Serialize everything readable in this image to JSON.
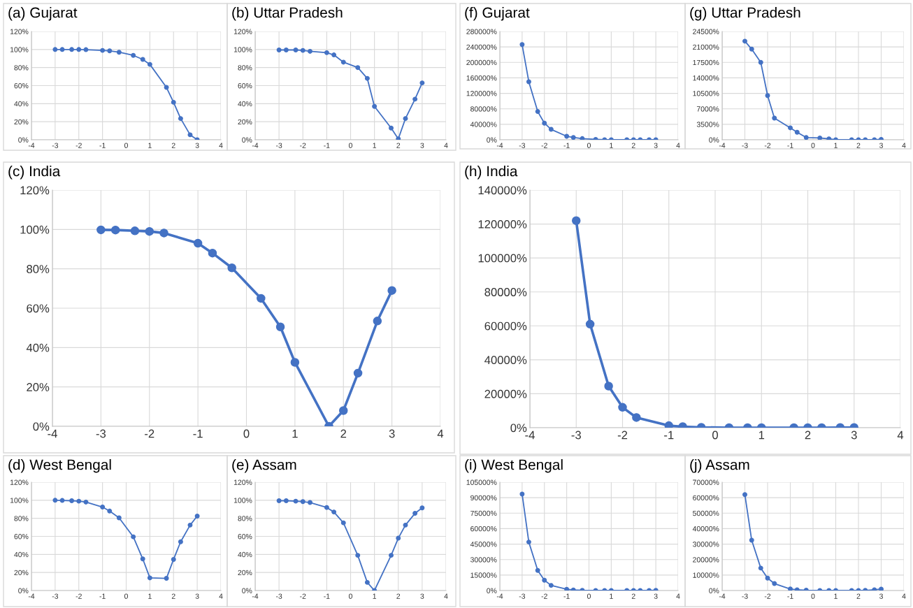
{
  "chart_data": [
    {
      "type": "line",
      "title": "(a) Gujarat",
      "x": [
        -3,
        -2.7,
        -2.3,
        -2,
        -1.7,
        -1,
        -0.7,
        -0.3,
        0.3,
        0.7,
        1,
        1.7,
        2,
        2.3,
        2.7,
        3
      ],
      "series": [
        {
          "color": "#4472c4",
          "values": [
            100,
            100,
            100,
            100,
            99.8,
            99,
            98.5,
            97,
            93.5,
            89,
            83.5,
            58,
            41.5,
            23.5,
            5.5,
            0
          ]
        }
      ],
      "xlim": [
        -4,
        4
      ],
      "ylim": [
        0,
        120
      ],
      "xticks": [
        -4,
        -3,
        -2,
        -1,
        0,
        1,
        2,
        3,
        4
      ],
      "yticks": [
        {
          "value": 0,
          "label": "0%"
        },
        {
          "value": 20,
          "label": "20%"
        },
        {
          "value": 40,
          "label": "40%"
        },
        {
          "value": 60,
          "label": "60%"
        },
        {
          "value": 80,
          "label": "80%"
        },
        {
          "value": 100,
          "label": "100%"
        },
        {
          "value": 120,
          "label": "120%"
        }
      ],
      "grid": true,
      "marker": "circle",
      "line_style": "solid"
    },
    {
      "type": "line",
      "title": "(b) Uttar Pradesh",
      "x": [
        -3,
        -2.7,
        -2.3,
        -2,
        -1.7,
        -1,
        -0.7,
        -0.3,
        0.3,
        0.7,
        1,
        1.7,
        2,
        2.3,
        2.7,
        3
      ],
      "series": [
        {
          "color": "#4472c4",
          "values": [
            99.5,
            99.5,
            99.5,
            99,
            98,
            96.5,
            94,
            86,
            80,
            68,
            37,
            13,
            1,
            23.5,
            45,
            63
          ]
        }
      ],
      "xlim": [
        -4,
        4
      ],
      "ylim": [
        0,
        120
      ],
      "xticks": [
        -4,
        -3,
        -2,
        -1,
        0,
        1,
        2,
        3,
        4
      ],
      "yticks": [
        {
          "value": 0,
          "label": "0%"
        },
        {
          "value": 20,
          "label": "20%"
        },
        {
          "value": 40,
          "label": "40%"
        },
        {
          "value": 60,
          "label": "60%"
        },
        {
          "value": 80,
          "label": "80%"
        },
        {
          "value": 100,
          "label": "100%"
        },
        {
          "value": 120,
          "label": "120%"
        }
      ],
      "grid": true,
      "marker": "circle",
      "line_style": "solid"
    },
    {
      "type": "line",
      "title": "(f) Gujarat",
      "x": [
        -3,
        -2.7,
        -2.3,
        -2,
        -1.7,
        -1,
        -0.7,
        -0.3,
        0.3,
        0.7,
        1,
        1.7,
        2,
        2.3,
        2.7,
        3
      ],
      "series": [
        {
          "color": "#4472c4",
          "values": [
            246000,
            150000,
            73000,
            43000,
            27000,
            9000,
            6000,
            3000,
            1000,
            0,
            0,
            0,
            0,
            0,
            0,
            0
          ]
        }
      ],
      "xlim": [
        -4,
        4
      ],
      "ylim": [
        0,
        280000
      ],
      "xticks": [
        -4,
        -3,
        -2,
        -1,
        0,
        1,
        2,
        3,
        4
      ],
      "yticks": [
        {
          "value": 0,
          "label": "0%"
        },
        {
          "value": 40000,
          "label": "40000%"
        },
        {
          "value": 80000,
          "label": "80000%"
        },
        {
          "value": 120000,
          "label": "120000%"
        },
        {
          "value": 160000,
          "label": "160000%"
        },
        {
          "value": 200000,
          "label": "200000%"
        },
        {
          "value": 240000,
          "label": "240000%"
        },
        {
          "value": 280000,
          "label": "280000%"
        }
      ],
      "grid": true,
      "marker": "circle",
      "line_style": "solid"
    },
    {
      "type": "line",
      "title": "(g) Uttar Pradesh",
      "x": [
        -3,
        -2.7,
        -2.3,
        -2,
        -1.7,
        -1,
        -0.7,
        -0.3,
        0.3,
        0.7,
        1,
        1.7,
        2,
        2.3,
        2.7,
        3
      ],
      "series": [
        {
          "color": "#4472c4",
          "values": [
            22300,
            20500,
            17500,
            10000,
            4900,
            2700,
            1700,
            500,
            400,
            200,
            0,
            0,
            0,
            0,
            0,
            100
          ]
        }
      ],
      "xlim": [
        -4,
        4
      ],
      "ylim": [
        0,
        24500
      ],
      "xticks": [
        -4,
        -3,
        -2,
        -1,
        0,
        1,
        2,
        3,
        4
      ],
      "yticks": [
        {
          "value": 0,
          "label": "0%"
        },
        {
          "value": 3500,
          "label": "3500%"
        },
        {
          "value": 7000,
          "label": "7000%"
        },
        {
          "value": 10500,
          "label": "10500%"
        },
        {
          "value": 14000,
          "label": "14000%"
        },
        {
          "value": 17500,
          "label": "17500%"
        },
        {
          "value": 21000,
          "label": "21000%"
        },
        {
          "value": 24500,
          "label": "24500%"
        }
      ],
      "grid": true,
      "marker": "circle",
      "line_style": "solid"
    },
    {
      "type": "line",
      "title": "(c) India",
      "x": [
        -3,
        -2.7,
        -2.3,
        -2,
        -1.7,
        -1,
        -0.7,
        -0.3,
        0.3,
        0.7,
        1,
        1.7,
        2,
        2.3,
        2.7,
        3
      ],
      "series": [
        {
          "color": "#4472c4",
          "values": [
            99.8,
            99.7,
            99.3,
            99,
            98.2,
            93,
            88,
            80.5,
            65,
            50.5,
            32.5,
            0,
            8,
            27,
            53.5,
            69
          ]
        }
      ],
      "xlim": [
        -4,
        4
      ],
      "ylim": [
        0,
        120
      ],
      "xticks": [
        -4,
        -3,
        -2,
        -1,
        0,
        1,
        2,
        3,
        4
      ],
      "yticks": [
        {
          "value": 0,
          "label": "0%"
        },
        {
          "value": 20,
          "label": "20%"
        },
        {
          "value": 40,
          "label": "40%"
        },
        {
          "value": 60,
          "label": "60%"
        },
        {
          "value": 80,
          "label": "80%"
        },
        {
          "value": 100,
          "label": "100%"
        },
        {
          "value": 120,
          "label": "120%"
        }
      ],
      "grid": true,
      "marker": "circle",
      "line_style": "solid"
    },
    {
      "type": "line",
      "title": "(h) India",
      "x": [
        -3,
        -2.7,
        -2.3,
        -2,
        -1.7,
        -1,
        -0.7,
        -0.3,
        0.3,
        0.7,
        1,
        1.7,
        2,
        2.3,
        2.7,
        3
      ],
      "series": [
        {
          "color": "#4472c4",
          "values": [
            122000,
            61000,
            24500,
            12000,
            6000,
            1200,
            600,
            200,
            0,
            0,
            0,
            0,
            0,
            0,
            100,
            100
          ]
        }
      ],
      "xlim": [
        -4,
        4
      ],
      "ylim": [
        0,
        140000
      ],
      "xticks": [
        -4,
        -3,
        -2,
        -1,
        0,
        1,
        2,
        3,
        4
      ],
      "yticks": [
        {
          "value": 0,
          "label": "0%"
        },
        {
          "value": 20000,
          "label": "20000%"
        },
        {
          "value": 40000,
          "label": "40000%"
        },
        {
          "value": 60000,
          "label": "60000%"
        },
        {
          "value": 80000,
          "label": "80000%"
        },
        {
          "value": 100000,
          "label": "100000%"
        },
        {
          "value": 120000,
          "label": "120000%"
        },
        {
          "value": 140000,
          "label": "140000%"
        }
      ],
      "grid": true,
      "marker": "circle",
      "line_style": "solid"
    },
    {
      "type": "line",
      "title": "(d) West Bengal",
      "x": [
        -3,
        -2.7,
        -2.3,
        -2,
        -1.7,
        -1,
        -0.7,
        -0.3,
        0.3,
        0.7,
        1,
        1.7,
        2,
        2.3,
        2.7,
        3
      ],
      "series": [
        {
          "color": "#4472c4",
          "values": [
            100,
            99.8,
            99.5,
            99,
            98,
            92.5,
            88,
            80.5,
            59.5,
            35,
            14,
            13.5,
            34.5,
            54,
            72.5,
            82.5
          ]
        }
      ],
      "xlim": [
        -4,
        4
      ],
      "ylim": [
        0,
        120
      ],
      "xticks": [
        -4,
        -3,
        -2,
        -1,
        0,
        1,
        2,
        3,
        4
      ],
      "yticks": [
        {
          "value": 0,
          "label": "0%"
        },
        {
          "value": 20,
          "label": "20%"
        },
        {
          "value": 40,
          "label": "40%"
        },
        {
          "value": 60,
          "label": "60%"
        },
        {
          "value": 80,
          "label": "80%"
        },
        {
          "value": 100,
          "label": "100%"
        },
        {
          "value": 120,
          "label": "120%"
        }
      ],
      "grid": true,
      "marker": "circle",
      "line_style": "solid"
    },
    {
      "type": "line",
      "title": "(e) Assam",
      "x": [
        -3,
        -2.7,
        -2.3,
        -2,
        -1.7,
        -1,
        -0.7,
        -0.3,
        0.3,
        0.7,
        1,
        1.7,
        2,
        2.3,
        2.7,
        3
      ],
      "series": [
        {
          "color": "#4472c4",
          "values": [
            99.5,
            99.5,
            99,
            98.5,
            97.5,
            92,
            87,
            75,
            39,
            9,
            0,
            39,
            58,
            72.5,
            85.5,
            91.5
          ]
        }
      ],
      "xlim": [
        -4,
        4
      ],
      "ylim": [
        0,
        120
      ],
      "xticks": [
        -4,
        -3,
        -2,
        -1,
        0,
        1,
        2,
        3,
        4
      ],
      "yticks": [
        {
          "value": 0,
          "label": "0%"
        },
        {
          "value": 20,
          "label": "20%"
        },
        {
          "value": 40,
          "label": "40%"
        },
        {
          "value": 60,
          "label": "60%"
        },
        {
          "value": 80,
          "label": "80%"
        },
        {
          "value": 100,
          "label": "100%"
        },
        {
          "value": 120,
          "label": "120%"
        }
      ],
      "grid": true,
      "marker": "circle",
      "line_style": "solid"
    },
    {
      "type": "line",
      "title": "(i) West Bengal",
      "x": [
        -3,
        -2.7,
        -2.3,
        -2,
        -1.7,
        -1,
        -0.7,
        -0.3,
        0.3,
        0.7,
        1,
        1.7,
        2,
        2.3,
        2.7,
        3
      ],
      "series": [
        {
          "color": "#4472c4",
          "values": [
            93500,
            47000,
            19500,
            10000,
            5000,
            1200,
            600,
            200,
            0,
            0,
            0,
            0,
            0,
            0,
            100,
            200
          ]
        }
      ],
      "xlim": [
        -4,
        4
      ],
      "ylim": [
        0,
        105000
      ],
      "xticks": [
        -4,
        -3,
        -2,
        -1,
        0,
        1,
        2,
        3,
        4
      ],
      "yticks": [
        {
          "value": 0,
          "label": "0%"
        },
        {
          "value": 15000,
          "label": "15000%"
        },
        {
          "value": 30000,
          "label": "30000%"
        },
        {
          "value": 45000,
          "label": "45000%"
        },
        {
          "value": 60000,
          "label": "60000%"
        },
        {
          "value": 75000,
          "label": "75000%"
        },
        {
          "value": 90000,
          "label": "90000%"
        },
        {
          "value": 105000,
          "label": "105000%"
        }
      ],
      "grid": true,
      "marker": "circle",
      "line_style": "solid"
    },
    {
      "type": "line",
      "title": "(j) Assam",
      "x": [
        -3,
        -2.7,
        -2.3,
        -2,
        -1.7,
        -1,
        -0.7,
        -0.3,
        0.3,
        0.7,
        1,
        1.7,
        2,
        2.3,
        2.7,
        3
      ],
      "series": [
        {
          "color": "#4472c4",
          "values": [
            62000,
            32500,
            14500,
            8000,
            4500,
            1000,
            500,
            200,
            0,
            0,
            0,
            0,
            0,
            100,
            500,
            900
          ]
        }
      ],
      "xlim": [
        -4,
        4
      ],
      "ylim": [
        0,
        70000
      ],
      "xticks": [
        -4,
        -3,
        -2,
        -1,
        0,
        1,
        2,
        3,
        4
      ],
      "yticks": [
        {
          "value": 0,
          "label": "0%"
        },
        {
          "value": 10000,
          "label": "10000%"
        },
        {
          "value": 20000,
          "label": "20000%"
        },
        {
          "value": 30000,
          "label": "30000%"
        },
        {
          "value": 40000,
          "label": "40000%"
        },
        {
          "value": 50000,
          "label": "50000%"
        },
        {
          "value": 60000,
          "label": "60000%"
        },
        {
          "value": 70000,
          "label": "70000%"
        }
      ],
      "grid": true,
      "marker": "circle",
      "line_style": "solid"
    }
  ]
}
